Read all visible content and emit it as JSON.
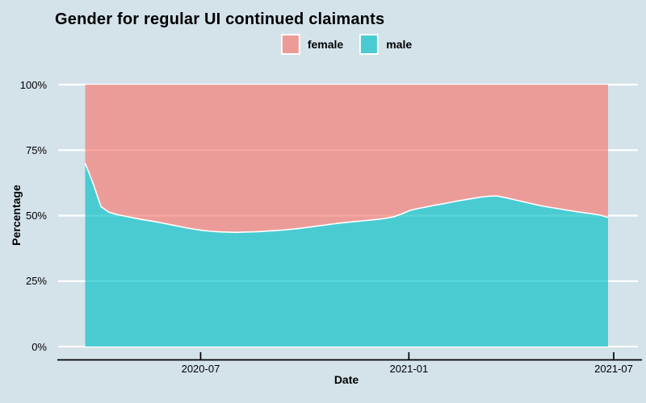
{
  "title": "Gender for regular UI continued claimants",
  "legend": {
    "items": [
      {
        "label": "female",
        "color": "#F8766D"
      },
      {
        "label": "male",
        "color": "#00BFC4"
      }
    ]
  },
  "colors": {
    "background": "#d4e2ea",
    "gridline": "#ffffff",
    "boundary_stroke": "#ffffff",
    "axis_line": "#000000",
    "text": "#000000",
    "area_alpha": 0.65
  },
  "chart_data": {
    "type": "area",
    "stacked": true,
    "normalized_percent": true,
    "title": "Gender for regular UI continued claimants",
    "xlabel": "Date",
    "ylabel": "Percentage",
    "ylim": [
      0,
      100
    ],
    "grid": true,
    "legend_position": "top-center",
    "y_ticks": [
      {
        "pct": 0,
        "label": "0%"
      },
      {
        "pct": 25,
        "label": "25%"
      },
      {
        "pct": 50,
        "label": "50%"
      },
      {
        "pct": 75,
        "label": "75%"
      },
      {
        "pct": 100,
        "label": "100%"
      }
    ],
    "x_ticks": [
      {
        "date": "2020-07-01",
        "label": "2020-07"
      },
      {
        "date": "2021-01-01",
        "label": "2021-01"
      },
      {
        "date": "2021-07-01",
        "label": "2021-07"
      }
    ],
    "x": [
      "2020-03-21",
      "2020-03-28",
      "2020-04-04",
      "2020-04-11",
      "2020-04-18",
      "2020-04-25",
      "2020-05-02",
      "2020-05-09",
      "2020-05-16",
      "2020-05-23",
      "2020-05-30",
      "2020-06-06",
      "2020-06-13",
      "2020-06-20",
      "2020-06-27",
      "2020-07-04",
      "2020-07-11",
      "2020-07-18",
      "2020-07-25",
      "2020-08-01",
      "2020-08-08",
      "2020-08-15",
      "2020-08-22",
      "2020-08-29",
      "2020-09-05",
      "2020-09-12",
      "2020-09-19",
      "2020-09-26",
      "2020-10-03",
      "2020-10-10",
      "2020-10-17",
      "2020-10-24",
      "2020-10-31",
      "2020-11-07",
      "2020-11-14",
      "2020-11-21",
      "2020-11-28",
      "2020-12-05",
      "2020-12-12",
      "2020-12-19",
      "2020-12-26",
      "2021-01-02",
      "2021-01-09",
      "2021-01-16",
      "2021-01-23",
      "2021-01-30",
      "2021-02-06",
      "2021-02-13",
      "2021-02-20",
      "2021-02-27",
      "2021-03-06",
      "2021-03-13",
      "2021-03-20",
      "2021-03-27",
      "2021-04-03",
      "2021-04-10",
      "2021-04-17",
      "2021-04-24",
      "2021-05-01",
      "2021-05-08",
      "2021-05-15",
      "2021-05-22",
      "2021-05-29",
      "2021-06-05",
      "2021-06-12",
      "2021-06-19",
      "2021-06-26"
    ],
    "series": [
      {
        "name": "male",
        "color": "#00BFC4",
        "values": [
          70.0,
          62.3,
          53.4,
          51.3,
          50.4,
          49.8,
          49.2,
          48.6,
          48.1,
          47.6,
          47.0,
          46.4,
          45.8,
          45.2,
          44.7,
          44.3,
          44.0,
          43.8,
          43.7,
          43.6,
          43.7,
          43.8,
          43.9,
          44.1,
          44.3,
          44.5,
          44.8,
          45.1,
          45.5,
          45.9,
          46.3,
          46.7,
          47.1,
          47.4,
          47.7,
          48.0,
          48.3,
          48.6,
          49.0,
          49.6,
          50.7,
          52.0,
          52.7,
          53.3,
          53.9,
          54.4,
          55.0,
          55.6,
          56.1,
          56.6,
          57.1,
          57.4,
          57.5,
          56.9,
          56.2,
          55.5,
          54.8,
          54.1,
          53.5,
          53.0,
          52.5,
          52.0,
          51.5,
          51.1,
          50.7,
          50.2,
          49.3
        ]
      },
      {
        "name": "female",
        "color": "#F8766D",
        "values": [
          30.0,
          37.7,
          46.6,
          48.7,
          49.6,
          50.2,
          50.8,
          51.4,
          51.9,
          52.4,
          53.0,
          53.6,
          54.2,
          54.8,
          55.3,
          55.7,
          56.0,
          56.2,
          56.3,
          56.4,
          56.3,
          56.2,
          56.1,
          55.9,
          55.7,
          55.5,
          55.2,
          54.9,
          54.5,
          54.1,
          53.7,
          53.3,
          52.9,
          52.6,
          52.3,
          52.0,
          51.7,
          51.4,
          51.0,
          50.4,
          49.3,
          48.0,
          47.3,
          46.7,
          46.1,
          45.6,
          45.0,
          44.4,
          43.9,
          43.4,
          42.9,
          42.6,
          42.5,
          43.1,
          43.8,
          44.5,
          45.2,
          45.9,
          46.5,
          47.0,
          47.5,
          48.0,
          48.5,
          48.9,
          49.3,
          49.8,
          50.7
        ]
      }
    ]
  }
}
